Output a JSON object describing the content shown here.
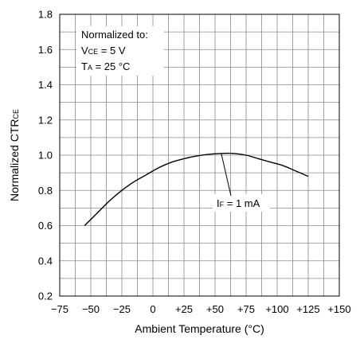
{
  "chart_data": {
    "type": "line",
    "xlabel": "Ambient Temperature (°C)",
    "ylabel_main": "Normalized CTR",
    "ylabel_sub": "CE",
    "xlim": [
      -75,
      150
    ],
    "ylim": [
      0.2,
      1.8
    ],
    "x_ticks": [
      -75,
      -50,
      -25,
      0,
      25,
      50,
      75,
      100,
      125,
      150
    ],
    "x_tick_labels": [
      "−75",
      "−50",
      "−25",
      "0",
      "+25",
      "+50",
      "+75",
      "+100",
      "+125",
      "+150"
    ],
    "y_ticks": [
      0.2,
      0.4,
      0.6,
      0.8,
      1.0,
      1.2,
      1.4,
      1.6,
      1.8
    ],
    "y_tick_labels": [
      "0.2",
      "0.4",
      "0.6",
      "0.8",
      "1.0",
      "1.2",
      "1.4",
      "1.6",
      "1.8"
    ],
    "x_grid_step": 12.5,
    "y_grid_step": 0.1,
    "grid": true,
    "series": [
      {
        "name": "IF = 1 mA",
        "x": [
          -55,
          -45,
          -35,
          -25,
          -15,
          -5,
          5,
          15,
          25,
          35,
          45,
          55,
          65,
          75,
          85,
          95,
          105,
          115,
          125
        ],
        "y": [
          0.6,
          0.67,
          0.74,
          0.8,
          0.85,
          0.89,
          0.93,
          0.96,
          0.98,
          0.995,
          1.005,
          1.01,
          1.01,
          1.0,
          0.98,
          0.96,
          0.94,
          0.91,
          0.88
        ]
      }
    ],
    "annotations": {
      "normalized_title": "Normalized to:",
      "vce_main": "V",
      "vce_sub": "CE",
      "vce_value": " = 5 V",
      "ta_main": "T",
      "ta_sub": "A",
      "ta_value": " = 25 °C",
      "if_main": "I",
      "if_sub": "F",
      "if_value": " = 1 mA",
      "if_pointer_x": 55,
      "if_pointer_y": 1.01
    }
  }
}
